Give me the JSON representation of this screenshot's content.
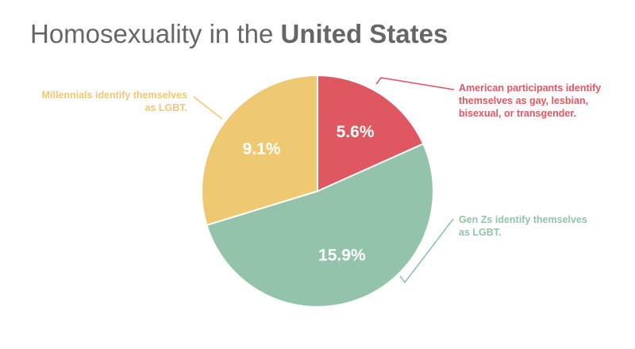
{
  "title": {
    "prefix": "Homosexuality in the ",
    "emphasis": "United States"
  },
  "chart_data": {
    "type": "pie",
    "title": "Homosexuality in the United States",
    "slices": [
      {
        "label": "5.6%",
        "value": 5.6,
        "color": "#df5760",
        "annotation": [
          "American participants identify",
          "themselves as gay, lesbian,",
          "bisexual, or transgender."
        ]
      },
      {
        "label": "15.9%",
        "value": 15.9,
        "color": "#93c3aa",
        "annotation": [
          "Gen Zs identify themselves",
          "as LGBT."
        ]
      },
      {
        "label": "9.1%",
        "value": 9.1,
        "color": "#efc872",
        "annotation": [
          "Millennials identify themselves",
          "as LGBT."
        ]
      }
    ],
    "start_angle": "12 o'clock, clockwise",
    "legend": "none"
  }
}
